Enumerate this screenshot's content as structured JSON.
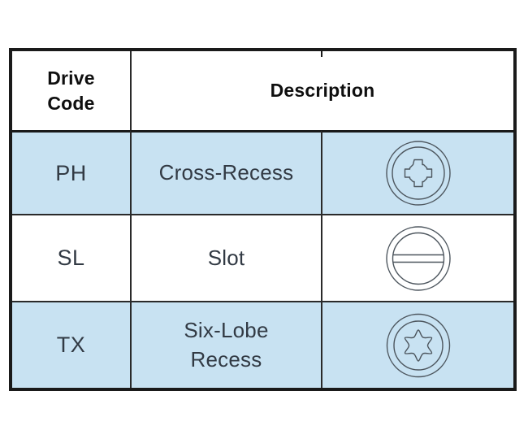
{
  "table": {
    "header": {
      "drive_code_label": "Drive\nCode",
      "description_label": "Description"
    },
    "rows": [
      {
        "code": "PH",
        "description": "Cross-Recess",
        "icon": "phillips-cross-recess-icon",
        "highlighted": true
      },
      {
        "code": "SL",
        "description": "Slot",
        "icon": "slot-icon",
        "highlighted": false
      },
      {
        "code": "TX",
        "description": "Six-Lobe\nRecess",
        "icon": "six-lobe-recess-icon",
        "highlighted": true
      }
    ],
    "colors": {
      "row_highlight": "#c8e2f2",
      "table_border": "#1a1a1a",
      "icon_stroke": "#4d565e",
      "cell_text": "#323a44",
      "header_text": "#0f0f0f"
    }
  }
}
